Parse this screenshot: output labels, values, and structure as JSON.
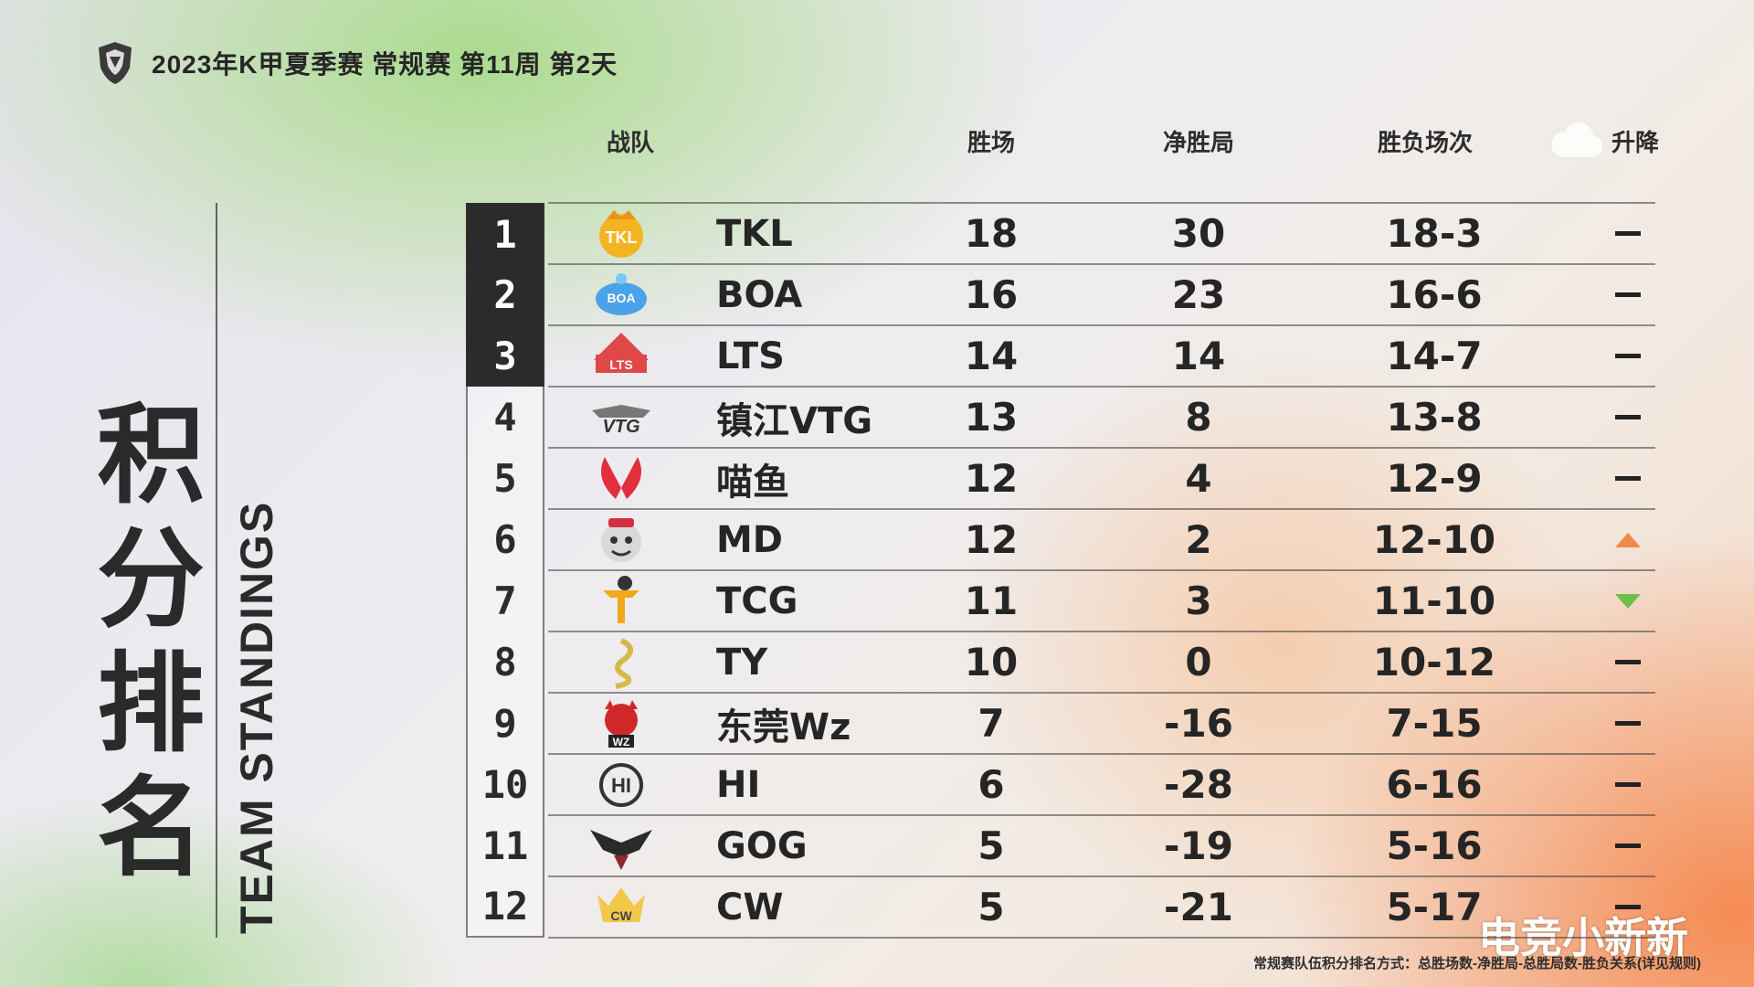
{
  "header": {
    "event_title": "2023年K甲夏季赛 常规赛 第11周 第2天"
  },
  "title": {
    "cn": [
      "积",
      "分",
      "排",
      "名"
    ],
    "en": "TEAM STANDINGS"
  },
  "columns": {
    "team": "战队",
    "wins": "胜场",
    "net": "净胜局",
    "record": "胜负场次",
    "change": "升降"
  },
  "rows": [
    {
      "rank": "1",
      "team": "TKL",
      "wins": "18",
      "net": "30",
      "record": "18-3",
      "change": "same",
      "logo": "tkl-logo"
    },
    {
      "rank": "2",
      "team": "BOA",
      "wins": "16",
      "net": "23",
      "record": "16-6",
      "change": "same",
      "logo": "boa-logo"
    },
    {
      "rank": "3",
      "team": "LTS",
      "wins": "14",
      "net": "14",
      "record": "14-7",
      "change": "same",
      "logo": "lts-logo"
    },
    {
      "rank": "4",
      "team": "镇江VTG",
      "wins": "13",
      "net": "8",
      "record": "13-8",
      "change": "same",
      "logo": "vtg-logo"
    },
    {
      "rank": "5",
      "team": "喵鱼",
      "wins": "12",
      "net": "4",
      "record": "12-9",
      "change": "same",
      "logo": "miaoyu-logo"
    },
    {
      "rank": "6",
      "team": "MD",
      "wins": "12",
      "net": "2",
      "record": "12-10",
      "change": "up",
      "logo": "md-logo"
    },
    {
      "rank": "7",
      "team": "TCG",
      "wins": "11",
      "net": "3",
      "record": "11-10",
      "change": "down",
      "logo": "tcg-logo"
    },
    {
      "rank": "8",
      "team": "TY",
      "wins": "10",
      "net": "0",
      "record": "10-12",
      "change": "same",
      "logo": "ty-logo"
    },
    {
      "rank": "9",
      "team": "东莞Wz",
      "wins": "7",
      "net": "-16",
      "record": "7-15",
      "change": "same",
      "logo": "wz-logo"
    },
    {
      "rank": "10",
      "team": "HI",
      "wins": "6",
      "net": "-28",
      "record": "6-16",
      "change": "same",
      "logo": "hi-logo"
    },
    {
      "rank": "11",
      "team": "GOG",
      "wins": "5",
      "net": "-19",
      "record": "5-16",
      "change": "same",
      "logo": "gog-logo"
    },
    {
      "rank": "12",
      "team": "CW",
      "wins": "5",
      "net": "-21",
      "record": "5-17",
      "change": "same",
      "logo": "cw-logo"
    }
  ],
  "colors": {
    "up": "#f08a4b",
    "down": "#6cc04a",
    "top3_bg": "#2b2b2b"
  },
  "footer": {
    "note": "常规赛队伍积分排名方式：总胜场数-净胜局-总胜局数-胜负关系(详见规则)"
  },
  "watermark": "电竞小新新"
}
